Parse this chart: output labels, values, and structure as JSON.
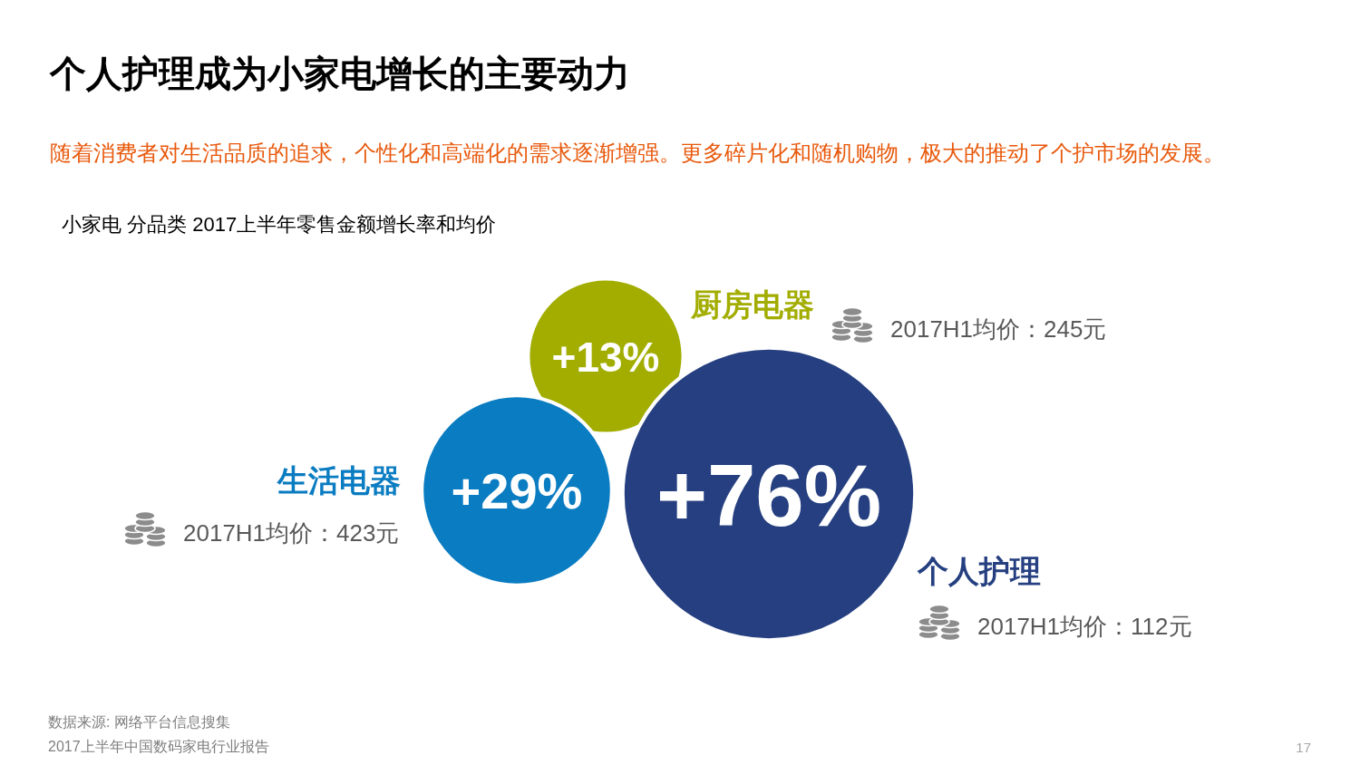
{
  "chart_data": {
    "type": "other",
    "title": "个人护理成为小家电增长的主要动力",
    "subtitle": "随着消费者对生活品质的追求，个性化和高端化的需求逐渐增强。更多碎片化和随机购物，极大的推动了个护市场的发展。",
    "categories": [
      "厨房电器",
      "生活电器",
      "个人护理"
    ],
    "values": [
      13,
      29,
      76
    ],
    "value_labels": [
      "+13%",
      "+29%",
      "+76%"
    ],
    "colors": [
      "#a2ad00",
      "#0a7cc1",
      "#253f80"
    ],
    "annotations": [
      "小家电 分品类 2017上半年零售金额增长率和均价",
      "2017H1均价：245元",
      "2017H1均价：423元",
      "2017H1均价：112元",
      "数据来源: 网络平台信息搜集",
      "2017上半年中国数码家电行业报告",
      "17"
    ]
  }
}
